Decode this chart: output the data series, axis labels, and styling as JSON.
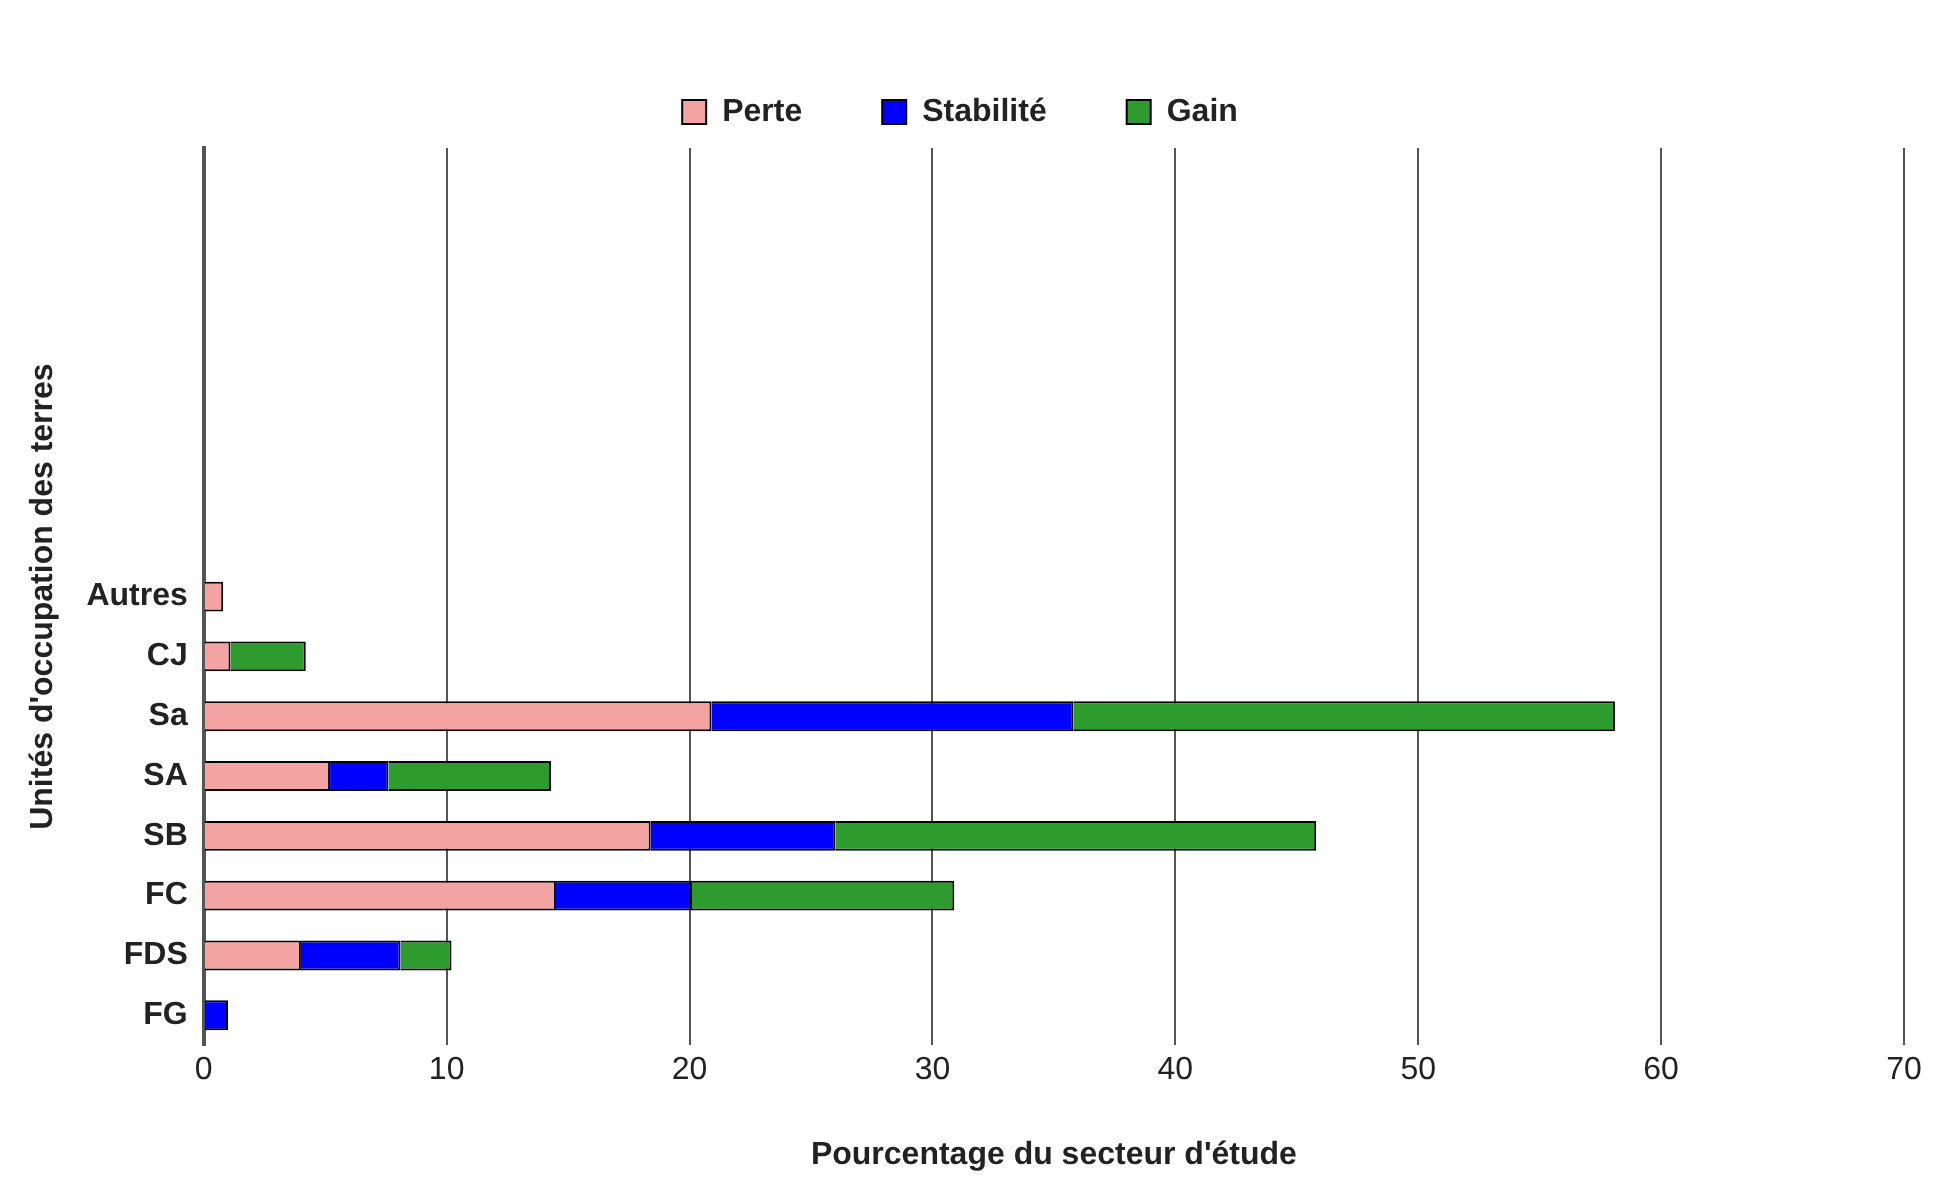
{
  "chart_data": {
    "type": "bar",
    "orientation": "horizontal",
    "stacked": true,
    "xlabel": "Pourcentage du secteur d'étude",
    "ylabel": "Unités d'occupation des terres",
    "categories": [
      null,
      null,
      null,
      null,
      null,
      null,
      null,
      "Autres",
      "CJ",
      "Sa",
      "SA",
      "SB",
      "FC",
      "FDS",
      "FG"
    ],
    "series": [
      {
        "name": "Perte",
        "color": "#f4a3a3",
        "values": [
          null,
          null,
          null,
          null,
          null,
          null,
          null,
          0.8,
          1.1,
          20.9,
          5.2,
          18.4,
          14.5,
          4.0,
          0
        ]
      },
      {
        "name": "Stabilité",
        "color": "#0000ff",
        "values": [
          null,
          null,
          null,
          null,
          null,
          null,
          null,
          0,
          0,
          14.9,
          2.4,
          7.6,
          5.6,
          4.1,
          1.0
        ]
      },
      {
        "name": "Gain",
        "color": "#2e9b2e",
        "values": [
          null,
          null,
          null,
          null,
          null,
          null,
          null,
          0,
          3.1,
          22.3,
          6.7,
          19.8,
          10.8,
          2.1,
          0
        ]
      }
    ],
    "xlim": [
      0,
      70
    ],
    "xticks": [
      0,
      10,
      20,
      30,
      40,
      50,
      60,
      70
    ],
    "grid": "x",
    "legend": "top"
  }
}
